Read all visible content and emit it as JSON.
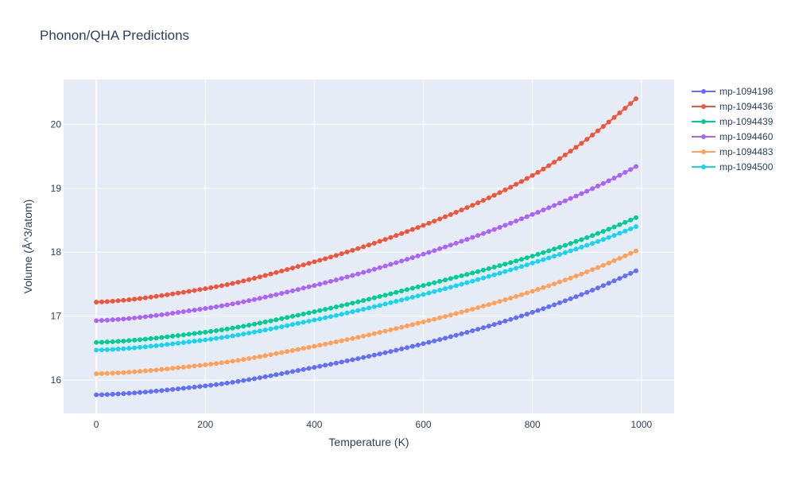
{
  "chart_data": {
    "type": "line",
    "title": "Phonon/QHA Predictions",
    "xlabel": "Temperature (K)",
    "ylabel": "Volume (Å^3/atom)",
    "xlim": [
      -60,
      1060
    ],
    "ylim": [
      15.48,
      20.7
    ],
    "xticks": [
      0,
      200,
      400,
      600,
      800,
      1000
    ],
    "yticks": [
      16,
      17,
      18,
      19,
      20
    ],
    "grid": true,
    "legend_position": "right",
    "x_range": {
      "start": 0,
      "end": 990,
      "step": 10
    },
    "series": [
      {
        "name": "mp-1094198",
        "color": "#636efa",
        "values_by_T": {
          "0": 15.77,
          "200": 15.91,
          "400": 16.2,
          "600": 16.57,
          "800": 17.06,
          "990": 17.71
        }
      },
      {
        "name": "mp-1094436",
        "color": "#ef553b",
        "values_by_T": {
          "0": 17.22,
          "200": 17.43,
          "400": 17.85,
          "600": 18.42,
          "800": 19.2,
          "990": 20.4
        }
      },
      {
        "name": "mp-1094439",
        "color": "#00cc96",
        "values_by_T": {
          "0": 16.59,
          "200": 16.75,
          "400": 17.07,
          "600": 17.48,
          "800": 17.94,
          "990": 18.54
        }
      },
      {
        "name": "mp-1094460",
        "color": "#ab63fa",
        "values_by_T": {
          "0": 16.93,
          "200": 17.12,
          "400": 17.48,
          "600": 17.97,
          "800": 18.59,
          "990": 19.34
        }
      },
      {
        "name": "mp-1094483",
        "color": "#ffa15a",
        "values_by_T": {
          "0": 16.1,
          "200": 16.24,
          "400": 16.53,
          "600": 16.91,
          "800": 17.39,
          "990": 18.02
        }
      },
      {
        "name": "mp-1094500",
        "color": "#19d3f3",
        "values_by_T": {
          "0": 16.47,
          "200": 16.63,
          "400": 16.94,
          "600": 17.34,
          "800": 17.83,
          "990": 18.4
        }
      }
    ]
  }
}
